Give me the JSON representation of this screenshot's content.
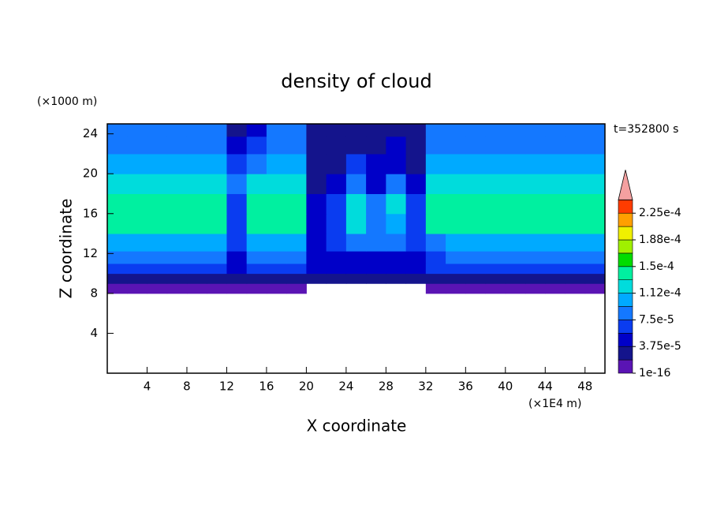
{
  "chart_data": {
    "type": "heatmap",
    "title": "density of cloud",
    "x_label": "X coordinate",
    "y_label": "Z coordinate",
    "x_unit": "(×1E4 m)",
    "y_unit": "(×1000 m)",
    "annotation": "t=352800 s",
    "xlim": [
      0,
      50
    ],
    "ylim": [
      0,
      25
    ],
    "xticks": [
      4,
      8,
      12,
      16,
      20,
      24,
      28,
      32,
      36,
      40,
      44,
      48
    ],
    "yticks": [
      4,
      8,
      12,
      16,
      20,
      24
    ],
    "x": [
      1,
      3,
      5,
      7,
      9,
      11,
      13,
      15,
      17,
      19,
      21,
      23,
      25,
      27,
      29,
      31,
      33,
      35,
      37,
      39,
      41,
      43,
      45,
      47,
      49
    ],
    "y": [
      8.5,
      9.5,
      10.5,
      11.5,
      13,
      15,
      17,
      19,
      21,
      23,
      24.5
    ],
    "z": [
      [
        1e-05,
        1e-05,
        1e-05,
        1e-05,
        1e-05,
        1e-05,
        1e-05,
        1e-05,
        1e-05,
        1e-05,
        null,
        null,
        null,
        null,
        null,
        null,
        1e-05,
        1e-05,
        1e-05,
        1e-05,
        1e-05,
        1e-05,
        1e-05,
        1e-05,
        1e-05
      ],
      [
        3e-05,
        3e-05,
        3e-05,
        3e-05,
        3e-05,
        3e-05,
        3e-05,
        3e-05,
        3e-05,
        3e-05,
        2e-05,
        2e-05,
        2e-05,
        2e-05,
        2e-05,
        2e-05,
        3e-05,
        3e-05,
        3e-05,
        3e-05,
        3e-05,
        3e-05,
        3e-05,
        3e-05,
        3e-05
      ],
      [
        6e-05,
        6e-05,
        6e-05,
        6e-05,
        6e-05,
        6e-05,
        5e-05,
        6e-05,
        6e-05,
        6e-05,
        4e-05,
        4e-05,
        4e-05,
        4e-05,
        4e-05,
        4e-05,
        6e-05,
        6e-05,
        6e-05,
        6e-05,
        6e-05,
        6e-05,
        6e-05,
        6e-05,
        6e-05
      ],
      [
        8.5e-05,
        8.5e-05,
        8.5e-05,
        8.5e-05,
        8.5e-05,
        8.5e-05,
        5e-05,
        8.5e-05,
        8.5e-05,
        8.5e-05,
        5e-05,
        5e-05,
        5e-05,
        5e-05,
        5e-05,
        5e-05,
        7e-05,
        8.5e-05,
        8.5e-05,
        8.5e-05,
        8.5e-05,
        8.5e-05,
        8.5e-05,
        8.5e-05,
        8.5e-05
      ],
      [
        0.000105,
        0.000105,
        0.000105,
        0.000105,
        0.000105,
        0.000105,
        7e-05,
        0.000105,
        0.000105,
        0.000105,
        5e-05,
        6e-05,
        9e-05,
        8e-05,
        9e-05,
        6e-05,
        8e-05,
        0.000105,
        0.000105,
        0.000105,
        0.000105,
        0.000105,
        0.000105,
        0.000105,
        0.000105
      ],
      [
        0.000135,
        0.000135,
        0.000135,
        0.000135,
        0.000135,
        0.000135,
        7e-05,
        0.000135,
        0.000135,
        0.000135,
        5e-05,
        6e-05,
        0.00012,
        8e-05,
        0.00011,
        6e-05,
        0.000135,
        0.000135,
        0.000135,
        0.000135,
        0.000135,
        0.000135,
        0.000135,
        0.000135,
        0.000135
      ],
      [
        0.00014,
        0.00014,
        0.00014,
        0.00014,
        0.00014,
        0.00014,
        7e-05,
        0.00014,
        0.00014,
        0.00014,
        5e-05,
        6e-05,
        0.000125,
        9e-05,
        0.00012,
        6e-05,
        0.00014,
        0.00014,
        0.00014,
        0.00014,
        0.00014,
        0.00014,
        0.00014,
        0.00014,
        0.00014
      ],
      [
        0.00012,
        0.00012,
        0.00012,
        0.00012,
        0.00012,
        0.00012,
        8e-05,
        0.00012,
        0.00012,
        0.00012,
        3e-05,
        4e-05,
        8e-05,
        5e-05,
        9e-05,
        5e-05,
        0.00012,
        0.00012,
        0.00012,
        0.00012,
        0.00012,
        0.00012,
        0.00012,
        0.00012,
        0.00012
      ],
      [
        0.000105,
        0.000105,
        0.000105,
        0.000105,
        0.000105,
        0.000105,
        6e-05,
        9e-05,
        0.000105,
        0.000105,
        3e-05,
        3e-05,
        6e-05,
        4e-05,
        5e-05,
        3e-05,
        0.000105,
        0.000105,
        0.000105,
        0.000105,
        0.000105,
        0.000105,
        0.000105,
        0.000105,
        0.000105
      ],
      [
        9e-05,
        9e-05,
        9e-05,
        9e-05,
        9e-05,
        9e-05,
        4e-05,
        6e-05,
        9e-05,
        9e-05,
        3e-05,
        3e-05,
        3e-05,
        3e-05,
        4e-05,
        3e-05,
        9e-05,
        9e-05,
        9e-05,
        9e-05,
        9e-05,
        9e-05,
        9e-05,
        9e-05,
        9e-05
      ],
      [
        8e-05,
        8e-05,
        8e-05,
        8e-05,
        8e-05,
        8e-05,
        3e-05,
        5e-05,
        8e-05,
        8e-05,
        3e-05,
        3e-05,
        2e-05,
        3e-05,
        3e-05,
        3e-05,
        8e-05,
        8e-05,
        8e-05,
        8e-05,
        8e-05,
        8e-05,
        8e-05,
        8e-05,
        8e-05
      ]
    ],
    "levels": [
      1e-16,
      1.875e-05,
      3.75e-05,
      5.625e-05,
      7.5e-05,
      9.375e-05,
      0.0001125,
      0.00013125,
      0.00015,
      0.00016875,
      0.0001875,
      0.00020625,
      0.000225,
      0.00024375
    ],
    "colors": [
      "#5a14b4",
      "#14148c",
      "#0000c8",
      "#0a3cf0",
      "#1478ff",
      "#00aaff",
      "#00dcdc",
      "#00f0a0",
      "#00dc00",
      "#a0f000",
      "#f0f000",
      "#ffa000",
      "#ff3c00"
    ],
    "extend_color": "#f4a0a0",
    "colorbar_ticks": [
      {
        "value": 1e-16,
        "label": "1e-16"
      },
      {
        "value": 3.75e-05,
        "label": "3.75e-5"
      },
      {
        "value": 7.5e-05,
        "label": "7.5e-5"
      },
      {
        "value": 0.0001125,
        "label": "1.12e-4"
      },
      {
        "value": 0.00015,
        "label": "1.5e-4"
      },
      {
        "value": 0.0001875,
        "label": "1.88e-4"
      },
      {
        "value": 0.000225,
        "label": "2.25e-4"
      }
    ]
  }
}
